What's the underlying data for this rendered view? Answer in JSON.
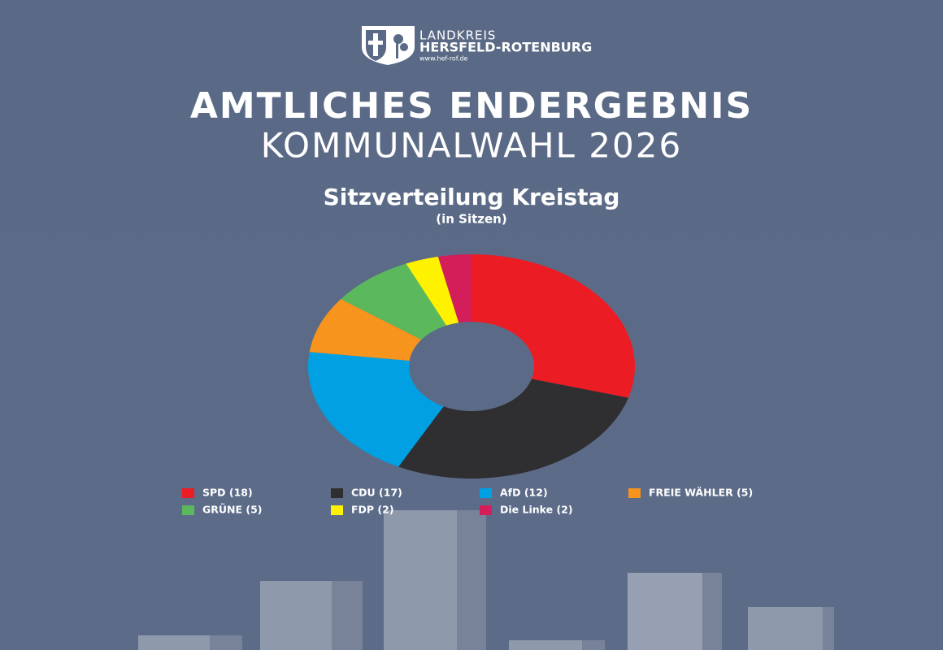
{
  "header": {
    "district_small": "LANDKREIS",
    "district": "HERSFELD-ROTENBURG",
    "url": "www.hef-rof.de",
    "headline": "AMTLICHES ENDERGEBNIS",
    "subheadline": "KOMMUNALWAHL 2026"
  },
  "chart_data": {
    "type": "donut",
    "title": "Sitzverteilung Kreistag",
    "subtitle": "(in Sitzen)",
    "categories": [
      "SPD (18)",
      "CDU (17)",
      "AfD (12)",
      "FREIE WÄHLER (5)",
      "GRÜNE (5)",
      "FDP (2)",
      "Die Linke (2)"
    ],
    "values": [
      18,
      17,
      12,
      5,
      5,
      2,
      2
    ],
    "colors": [
      "#ec1c24",
      "#2f2e30",
      "#00a0e3",
      "#f7941d",
      "#5cb85c",
      "#fff200",
      "#d31e5a"
    ]
  }
}
